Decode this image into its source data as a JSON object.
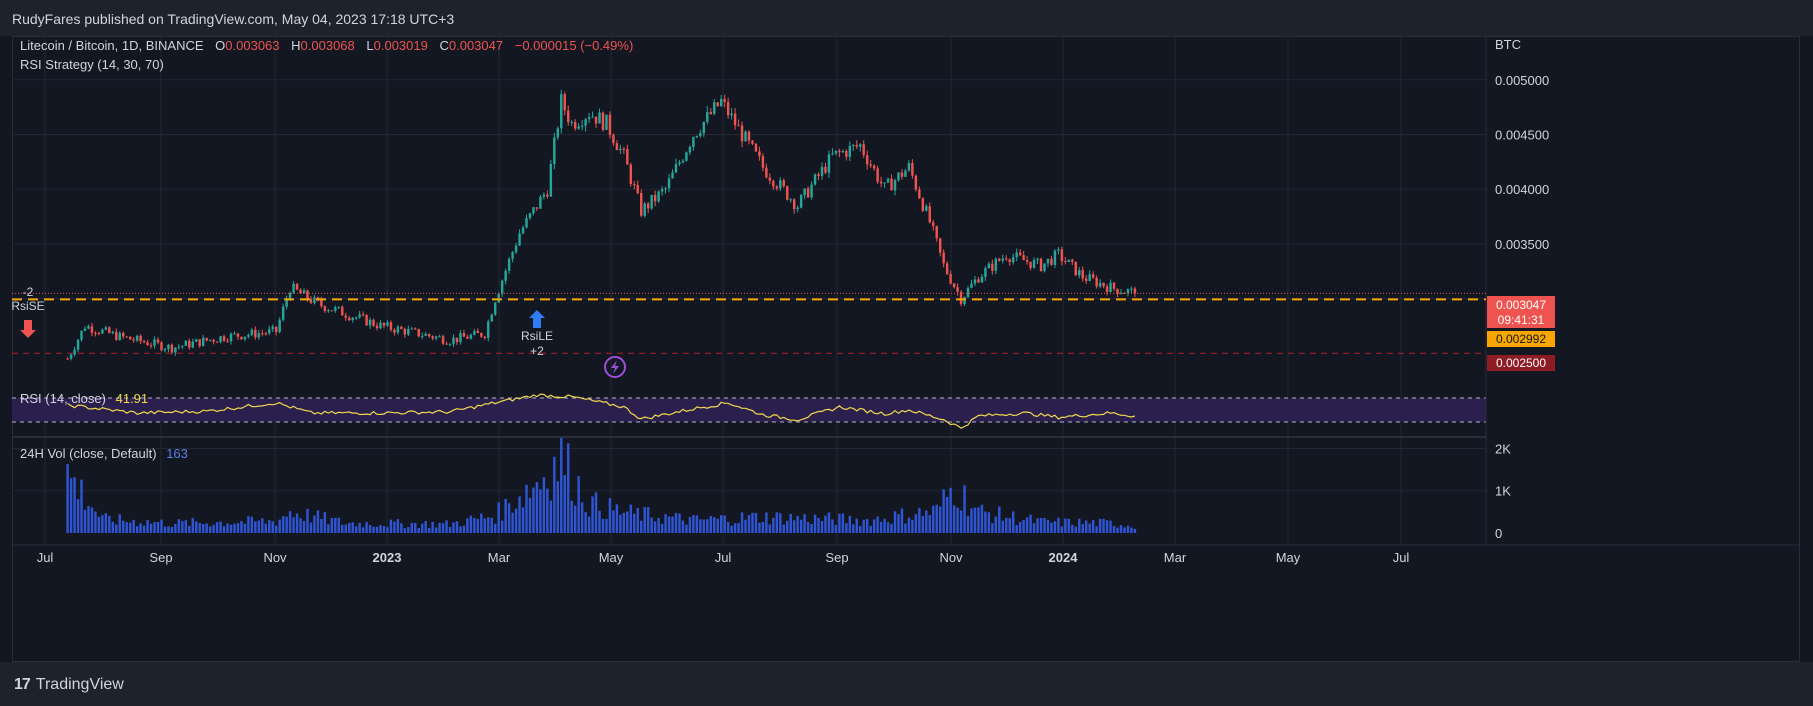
{
  "header": {
    "publisher": "RudyFares published on TradingView.com, May 04, 2023 17:18 UTC+3"
  },
  "footer": {
    "logo_mark": "17",
    "logo_text": "TradingView"
  },
  "legend": {
    "symbol": "Litecoin / Bitcoin, 1D, BINANCE",
    "o_label": "O",
    "o_value": "0.003063",
    "h_label": "H",
    "h_value": "0.003068",
    "l_label": "L",
    "l_value": "0.003019",
    "c_label": "C",
    "c_value": "0.003047",
    "change": "−0.000015 (−0.49%)",
    "strategy": "RSI Strategy (14, 30, 70)"
  },
  "signals": {
    "short_qty": "-2",
    "short_label": "RsiSE",
    "long_label": "RsiLE",
    "long_qty": "+2"
  },
  "price_badges": {
    "last_price": "0.003047",
    "countdown": "09:41:31",
    "support_price": "0.002992",
    "low_level": "0.002500"
  },
  "colors": {
    "background": "#131722",
    "grid": "#2a2e39",
    "up": "#26a69a",
    "down": "#ef5350",
    "support_line": "#f7a600",
    "rsi_line": "#f2d94e",
    "rsi_band": "#2a1f4d",
    "volume": "#2f55d4",
    "low_line": "#b2202a"
  },
  "chart_data": [
    {
      "type": "candlestick",
      "title": "Litecoin / Bitcoin, 1D, BINANCE",
      "axis_unit": "BTC",
      "ylim": [
        0.0022,
        0.0054
      ],
      "yticks": [
        "0.005000",
        "0.004500",
        "0.004000",
        "0.003500"
      ],
      "x_ticks": [
        "Jul",
        "Sep",
        "Nov",
        "2023",
        "Mar",
        "May",
        "Jul",
        "Sep",
        "Nov",
        "2024",
        "Mar",
        "May",
        "Jul"
      ],
      "x_range_days": [
        -16,
        408
      ],
      "anchors": [
        [
          0,
          0.00245
        ],
        [
          5,
          0.00275
        ],
        [
          15,
          0.00265
        ],
        [
          30,
          0.00255
        ],
        [
          45,
          0.00265
        ],
        [
          60,
          0.0027
        ],
        [
          64,
          0.0031
        ],
        [
          72,
          0.00295
        ],
        [
          90,
          0.00275
        ],
        [
          110,
          0.00262
        ],
        [
          120,
          0.00268
        ],
        [
          123,
          0.003
        ],
        [
          130,
          0.0036
        ],
        [
          138,
          0.004
        ],
        [
          142,
          0.0048
        ],
        [
          145,
          0.0046
        ],
        [
          150,
          0.0047
        ],
        [
          155,
          0.0046
        ],
        [
          160,
          0.0043
        ],
        [
          165,
          0.0038
        ],
        [
          172,
          0.004
        ],
        [
          180,
          0.0045
        ],
        [
          188,
          0.0048
        ],
        [
          192,
          0.0046
        ],
        [
          200,
          0.0042
        ],
        [
          210,
          0.00385
        ],
        [
          220,
          0.0043
        ],
        [
          228,
          0.0044
        ],
        [
          235,
          0.004
        ],
        [
          242,
          0.0042
        ],
        [
          248,
          0.0037
        ],
        [
          252,
          0.0033
        ],
        [
          257,
          0.003
        ],
        [
          262,
          0.0032
        ],
        [
          270,
          0.0034
        ],
        [
          280,
          0.0033
        ],
        [
          285,
          0.0034
        ],
        [
          292,
          0.0032
        ],
        [
          300,
          0.0031
        ],
        [
          307,
          0.00305
        ]
      ],
      "support_price": 0.002992,
      "last_price": 0.003047,
      "low_level": 0.0025
    },
    {
      "type": "line",
      "title": "RSI (14, close)",
      "value": "41.91",
      "upper_band": 70,
      "lower_band": 30,
      "anchors": [
        [
          0,
          58
        ],
        [
          20,
          45
        ],
        [
          40,
          48
        ],
        [
          60,
          62
        ],
        [
          70,
          45
        ],
        [
          90,
          45
        ],
        [
          110,
          47
        ],
        [
          123,
          62
        ],
        [
          135,
          75
        ],
        [
          145,
          72
        ],
        [
          160,
          55
        ],
        [
          165,
          35
        ],
        [
          180,
          52
        ],
        [
          190,
          62
        ],
        [
          200,
          42
        ],
        [
          210,
          34
        ],
        [
          222,
          55
        ],
        [
          235,
          44
        ],
        [
          242,
          50
        ],
        [
          252,
          34
        ],
        [
          257,
          20
        ],
        [
          262,
          40
        ],
        [
          275,
          45
        ],
        [
          285,
          38
        ],
        [
          300,
          45
        ],
        [
          307,
          40
        ]
      ]
    },
    {
      "type": "bar",
      "title": "24H Vol (close, Default)",
      "value": "163",
      "yticks": [
        "2K",
        "1K",
        "0"
      ],
      "ylim": [
        0,
        2200
      ],
      "anchors": [
        [
          0,
          1400
        ],
        [
          10,
          320
        ],
        [
          30,
          230
        ],
        [
          60,
          280
        ],
        [
          64,
          500
        ],
        [
          80,
          230
        ],
        [
          110,
          210
        ],
        [
          123,
          420
        ],
        [
          135,
          1200
        ],
        [
          142,
          1750
        ],
        [
          150,
          700
        ],
        [
          160,
          480
        ],
        [
          180,
          300
        ],
        [
          200,
          380
        ],
        [
          230,
          300
        ],
        [
          250,
          520
        ],
        [
          255,
          1100
        ],
        [
          262,
          500
        ],
        [
          280,
          260
        ],
        [
          300,
          230
        ],
        [
          307,
          170
        ]
      ]
    }
  ]
}
